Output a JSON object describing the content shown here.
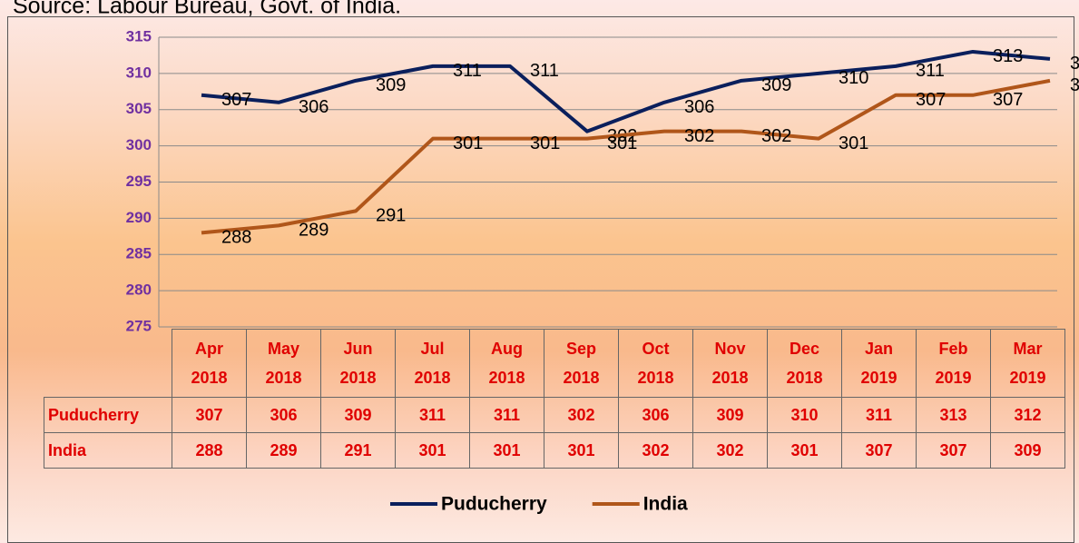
{
  "chart_data": {
    "type": "line",
    "source": "Source: Labour Bureau, Govt. of India.",
    "categories": [
      "Apr 2018",
      "May 2018",
      "Jun 2018",
      "Jul 2018",
      "Aug 2018",
      "Sep 2018",
      "Oct 2018",
      "Nov 2018",
      "Dec 2018",
      "Jan 2019",
      "Feb 2019",
      "Mar 2019"
    ],
    "series": [
      {
        "name": "Puducherry",
        "color": "#0a1f5c",
        "values": [
          307,
          306,
          309,
          311,
          311,
          302,
          306,
          309,
          310,
          311,
          313,
          312
        ]
      },
      {
        "name": "India",
        "color": "#b0561a",
        "values": [
          288,
          289,
          291,
          301,
          301,
          301,
          302,
          302,
          301,
          307,
          307,
          309
        ]
      }
    ],
    "ylim": [
      275,
      315
    ],
    "yticks": [
      275,
      280,
      285,
      290,
      295,
      300,
      305,
      310,
      315
    ],
    "grid": true,
    "legend": "bottom"
  }
}
